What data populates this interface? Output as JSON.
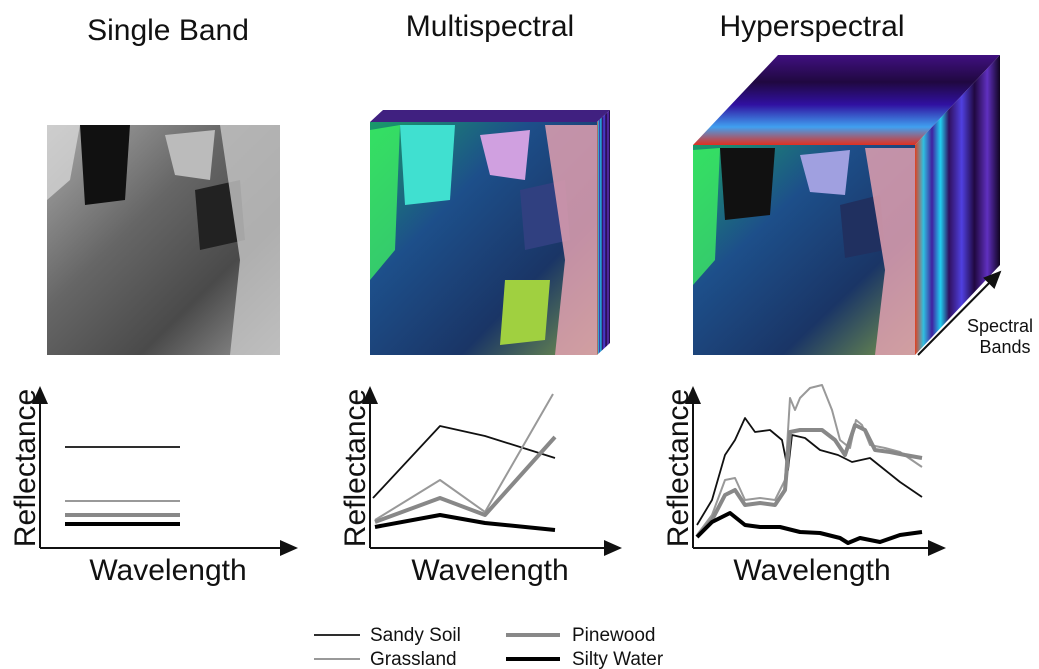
{
  "panels": [
    {
      "title": "Single Band",
      "y_label": "Reflectance",
      "x_label": "Wavelength"
    },
    {
      "title": "Multispectral",
      "y_label": "Reflectance",
      "x_label": "Wavelength"
    },
    {
      "title": "Hyperspectral",
      "y_label": "Reflectance",
      "x_label": "Wavelength"
    }
  ],
  "spectral_axis_label": [
    "Spectral",
    "Bands"
  ],
  "legend": [
    "Sandy Soil",
    "Grassland",
    "Pinewood",
    "Silty Water"
  ]
}
